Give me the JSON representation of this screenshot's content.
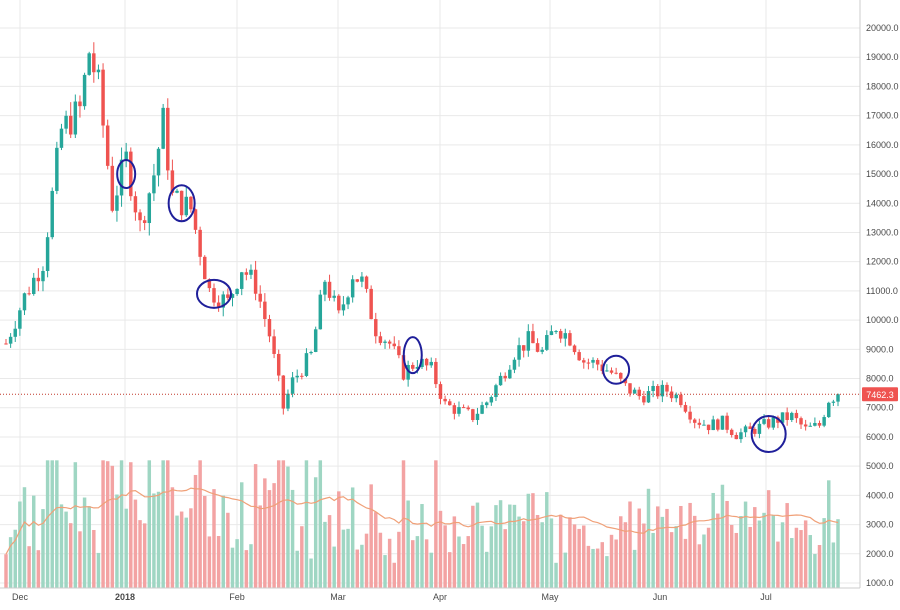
{
  "chart_data": {
    "type": "candlestick",
    "x_labels": [
      "Dec",
      "2018",
      "Feb",
      "Mar",
      "Apr",
      "May",
      "Jun",
      "Jul"
    ],
    "y_ticks": [
      1000,
      2000,
      3000,
      4000,
      5000,
      6000,
      7000,
      8000,
      9000,
      10000,
      11000,
      12000,
      13000,
      14000,
      15000,
      16000,
      17000,
      18000,
      19000,
      20000
    ],
    "y_tick_labels": [
      "1000.0",
      "2000.0",
      "3000.0",
      "4000.0",
      "5000.0",
      "6000.0",
      "7000.0",
      "8000.0",
      "9000.0",
      "10000.0",
      "11000.0",
      "12000.0",
      "13000.0",
      "14000.0",
      "15000.0",
      "16000.0",
      "17000.0",
      "18000.0",
      "19000.0",
      "20000.0"
    ],
    "ylim": [
      760,
      20600
    ],
    "current_price": 7462.3,
    "current_price_label": "7462.3",
    "grid": true,
    "price_path": [
      [
        0,
        9200
      ],
      [
        4,
        10800
      ],
      [
        8,
        12000
      ],
      [
        12,
        16500
      ],
      [
        16,
        17200
      ],
      [
        18,
        19200
      ],
      [
        20,
        18000
      ],
      [
        23,
        14000
      ],
      [
        26,
        15500
      ],
      [
        29,
        13200
      ],
      [
        32,
        15000
      ],
      [
        34,
        16800
      ],
      [
        36,
        14200
      ],
      [
        40,
        13800
      ],
      [
        44,
        11000
      ],
      [
        48,
        10600
      ],
      [
        51,
        11800
      ],
      [
        54,
        11200
      ],
      [
        57,
        9500
      ],
      [
        60,
        7000
      ],
      [
        62,
        7900
      ],
      [
        66,
        8800
      ],
      [
        69,
        11400
      ],
      [
        72,
        10100
      ],
      [
        75,
        11600
      ],
      [
        77,
        11300
      ],
      [
        80,
        9700
      ],
      [
        83,
        9200
      ],
      [
        86,
        8200
      ],
      [
        89,
        8600
      ],
      [
        92,
        8300
      ],
      [
        95,
        7100
      ],
      [
        98,
        6900
      ],
      [
        101,
        6700
      ],
      [
        104,
        7200
      ],
      [
        107,
        8000
      ],
      [
        110,
        8900
      ],
      [
        113,
        9300
      ],
      [
        116,
        8900
      ],
      [
        119,
        9800
      ],
      [
        122,
        9400
      ],
      [
        125,
        8600
      ],
      [
        128,
        8500
      ],
      [
        131,
        8200
      ],
      [
        134,
        7700
      ],
      [
        137,
        7400
      ],
      [
        140,
        7500
      ],
      [
        143,
        7600
      ],
      [
        146,
        7300
      ],
      [
        149,
        6600
      ],
      [
        152,
        6400
      ],
      [
        155,
        6500
      ],
      [
        158,
        6100
      ],
      [
        161,
        6200
      ],
      [
        164,
        6400
      ],
      [
        167,
        6600
      ],
      [
        170,
        6700
      ],
      [
        173,
        6250
      ],
      [
        176,
        6400
      ],
      [
        178,
        7300
      ],
      [
        180,
        7462.3
      ]
    ],
    "annotations": [
      {
        "shape": "ellipse",
        "i": 26,
        "v": 15000
      },
      {
        "shape": "ellipse",
        "i": 38,
        "v": 14000
      },
      {
        "shape": "ellipse",
        "i": 45,
        "v": 10900
      },
      {
        "shape": "ellipse",
        "i": 88,
        "v": 8800
      },
      {
        "shape": "ellipse",
        "i": 132,
        "v": 8300
      },
      {
        "shape": "ellipse",
        "i": 165,
        "v": 6100
      }
    ],
    "colors": {
      "up": "#26a69a",
      "down": "#ef5350",
      "up_volume": "#9fd6c3",
      "down_volume": "#f3a3a3",
      "ma": "#f0a078",
      "grid": "#e9e9e9",
      "axis_text": "#4a4a4a",
      "price_line": "#c0392b",
      "price_label_bg": "#ef5350",
      "annotation": "#1f1f9a"
    }
  }
}
